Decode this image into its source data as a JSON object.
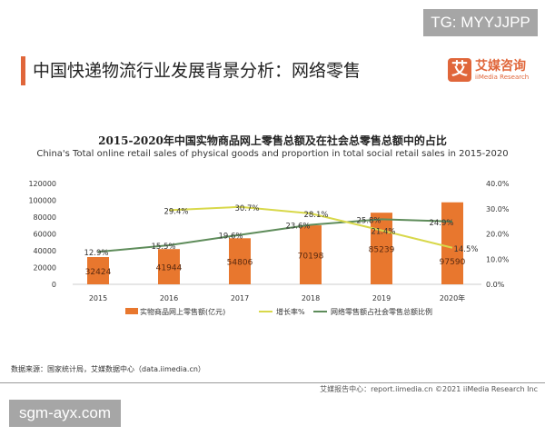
{
  "watermarks": {
    "top": "TG: MYYJJPP",
    "bottom": "sgm-ayx.com"
  },
  "header": {
    "title": "中国快递物流行业发展背景分析：网络零售",
    "logo_cn": "艾媒咨询",
    "logo_en": "iiMedia Research",
    "logo_mark": "艾"
  },
  "colors": {
    "bar": "#e8772e",
    "growth": "#d8d84a",
    "share": "#5e8c5a",
    "accent": "#e0663a"
  },
  "chart_data": {
    "type": "bar+line",
    "title": "2015-2020年中国实物商品网上零售总额及在社会总零售总额中的占比",
    "subtitle": "China's Total online retail sales of physical goods and proportion in total social retail sales in 2015-2020",
    "categories": [
      "2015",
      "2016",
      "2017",
      "2018",
      "2019",
      "2020年"
    ],
    "y_left": {
      "range": [
        0,
        120000
      ],
      "ticks": [
        "0",
        "20000",
        "40000",
        "60000",
        "80000",
        "100000",
        "120000"
      ]
    },
    "y_right": {
      "range": [
        0,
        40
      ],
      "ticks": [
        "0.0%",
        "10.0%",
        "20.0%",
        "30.0%",
        "40.0%"
      ]
    },
    "grid": false,
    "legend_position": "bottom",
    "series": [
      {
        "name": "实物商品网上零售额(亿元)",
        "type": "bar",
        "axis": "left",
        "values": [
          32424,
          41944,
          54806,
          70198,
          85239,
          97590
        ],
        "labels": [
          "32424",
          "41944",
          "54806",
          "70198",
          "85239",
          "97590"
        ]
      },
      {
        "name": "增长率%",
        "type": "line",
        "axis": "right",
        "values": [
          null,
          29.4,
          30.7,
          28.1,
          21.4,
          14.5
        ],
        "labels": [
          "",
          "29.4%",
          "30.7%",
          "28.1%",
          "21.4%",
          "14.5%"
        ]
      },
      {
        "name": "网络零售额占社会零售总额比例",
        "type": "line",
        "axis": "right",
        "values": [
          12.9,
          15.5,
          19.6,
          23.6,
          25.8,
          24.9
        ],
        "labels": [
          "12.9%",
          "15.5%",
          "19.6%",
          "23.6%",
          "25.8%",
          "24.9%"
        ]
      }
    ]
  },
  "source": "数据来源：国家统计局，艾媒数据中心（data.iimedia.cn）",
  "footer": "艾媒报告中心：report.iimedia.cn  ©2021  iiMedia Research Inc"
}
